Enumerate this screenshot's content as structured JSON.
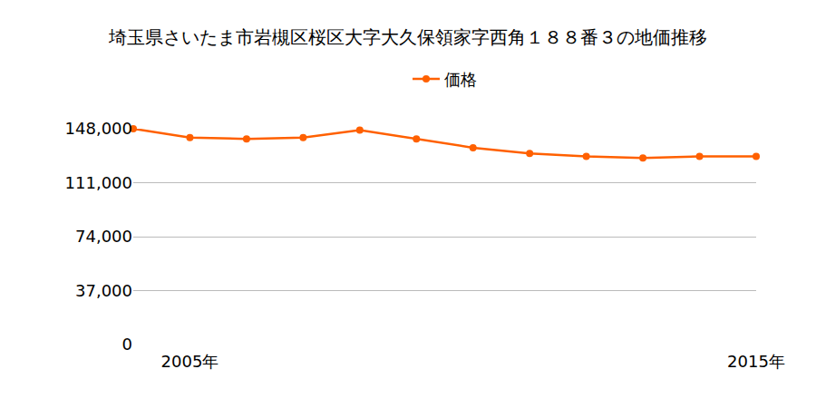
{
  "chart_data": {
    "type": "line",
    "title": "埼玉県さいたま市岩槻区桜区大字大久保領家字西角１８８番３の地価推移",
    "categories": [
      null,
      "2005年",
      null,
      null,
      null,
      null,
      null,
      null,
      null,
      null,
      null,
      "2015年"
    ],
    "series": [
      {
        "name": "価格",
        "color": "#ff6000",
        "marker": "circle",
        "values": [
          148000,
          142000,
          141000,
          142000,
          147000,
          141000,
          135000,
          131000,
          129000,
          128000,
          129000,
          129000
        ]
      }
    ],
    "ylim": [
      0,
      148000
    ],
    "yticks": [
      0,
      {
        "value": 37000,
        "label": "37,000"
      },
      {
        "value": 74000,
        "label": "74,000"
      },
      {
        "value": 111000,
        "label": "111,000"
      },
      {
        "value": 148000,
        "label": "148,000"
      }
    ],
    "grid": true,
    "legend": "top"
  }
}
